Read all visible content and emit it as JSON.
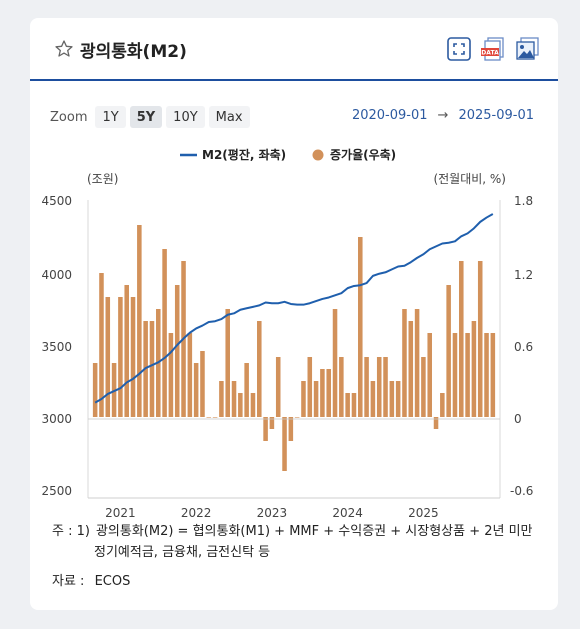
{
  "header": {
    "title": "광의통화(M2)",
    "tools": [
      "expand-icon",
      "data-download-icon",
      "image-download-icon"
    ]
  },
  "zoom": {
    "label": "Zoom",
    "options": [
      "1Y",
      "5Y",
      "10Y",
      "Max"
    ],
    "selected": "5Y"
  },
  "range": {
    "from": "2020-09-01",
    "arrow": "→",
    "to": "2025-09-01"
  },
  "colors": {
    "line": "#1f5fad",
    "bar": "#d2915a",
    "rule": "#1d4e9e"
  },
  "chart_data": {
    "type": "bar+line",
    "legend": [
      "M2(평잔, 좌축)",
      "증가율(우축)"
    ],
    "left_axis_label": "(조원)",
    "right_axis_label": "(전월대비, %)",
    "left_ticks": [
      "4500",
      "4000",
      "3500",
      "3000",
      "2500"
    ],
    "right_ticks": [
      "1.8",
      "1.2",
      "0.6",
      "0",
      "-0.6"
    ],
    "x_ticks": [
      "2021",
      "2022",
      "2023",
      "2024",
      "2025"
    ],
    "x_tick_index": [
      4,
      16,
      28,
      40,
      52
    ],
    "left_range": [
      2500,
      4500
    ],
    "right_range": [
      -0.6,
      1.8
    ],
    "grid": false,
    "legend_position": "top",
    "series": [
      {
        "name": "M2(평잔, 좌축)",
        "axis": "left",
        "kind": "line",
        "values": [
          3100,
          3125,
          3160,
          3180,
          3200,
          3240,
          3265,
          3300,
          3340,
          3360,
          3380,
          3410,
          3450,
          3500,
          3545,
          3585,
          3615,
          3635,
          3660,
          3665,
          3680,
          3710,
          3720,
          3745,
          3755,
          3765,
          3775,
          3795,
          3790,
          3790,
          3800,
          3785,
          3780,
          3780,
          3790,
          3805,
          3820,
          3830,
          3845,
          3860,
          3895,
          3910,
          3915,
          3930,
          3980,
          3995,
          4005,
          4025,
          4045,
          4050,
          4075,
          4105,
          4130,
          4165,
          4185,
          4205,
          4210,
          4220,
          4255,
          4275,
          4310,
          4355,
          4385,
          4410
        ]
      },
      {
        "name": "증가율(우축)",
        "axis": "right",
        "kind": "bar",
        "values": [
          0.45,
          1.2,
          1.0,
          0.45,
          1.0,
          1.1,
          1.0,
          1.6,
          0.8,
          0.8,
          0.9,
          1.4,
          0.7,
          1.1,
          1.3,
          0.7,
          0.45,
          0.55,
          0.0,
          0.0,
          0.3,
          0.9,
          0.3,
          0.2,
          0.45,
          0.2,
          0.8,
          -0.2,
          -0.1,
          0.5,
          -0.45,
          -0.2,
          0.0,
          0.3,
          0.5,
          0.3,
          0.4,
          0.4,
          0.9,
          0.5,
          0.2,
          0.2,
          1.5,
          0.5,
          0.3,
          0.5,
          0.5,
          0.3,
          0.3,
          0.9,
          0.8,
          0.9,
          0.5,
          0.7,
          -0.1,
          0.2,
          1.1,
          0.7,
          1.3,
          0.7,
          0.8,
          1.3,
          0.7,
          0.7
        ]
      }
    ]
  },
  "note": {
    "lead": "주 : 1)",
    "line1": "광의통화(M2) = 협의통화(M1) + MMF + 수익증권 + 시장형상품 + 2년 미만",
    "line2": "정기예적금, 금융채, 금전신탁 등"
  },
  "source": {
    "label": "자료 :",
    "value": "ECOS"
  }
}
